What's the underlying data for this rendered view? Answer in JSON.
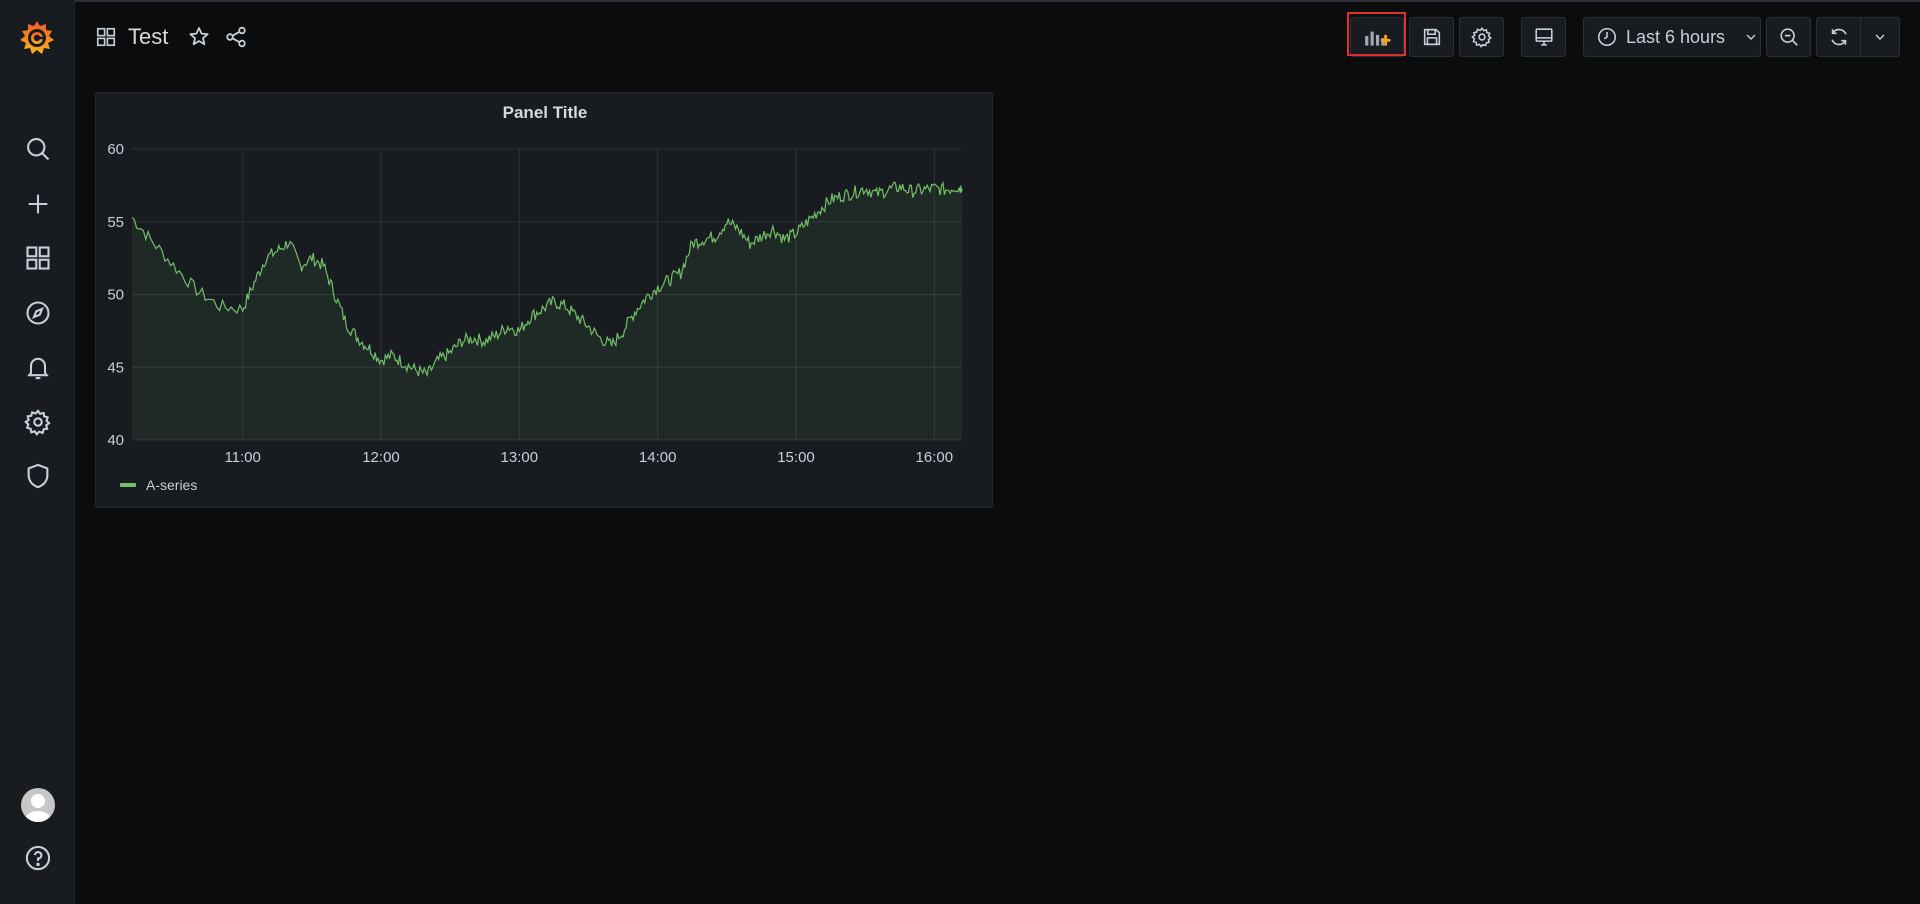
{
  "dashboard": {
    "title": "Test"
  },
  "toolbar": {
    "time_range_label": "Last 6 hours"
  },
  "sidebar": {
    "items": [
      {
        "name": "search-icon"
      },
      {
        "name": "plus-icon"
      },
      {
        "name": "dashboards-icon"
      },
      {
        "name": "explore-icon"
      },
      {
        "name": "alerting-bell-icon"
      },
      {
        "name": "configuration-gear-icon"
      },
      {
        "name": "server-admin-shield-icon"
      }
    ]
  },
  "colors": {
    "series": "#73bf69",
    "highlight": "#e02f2f",
    "add_panel_accent": "#f5a623"
  },
  "panel": {
    "title": "Panel Title",
    "legend": "A-series"
  },
  "chart_data": {
    "type": "line",
    "title": "Panel Title",
    "xlabel": "",
    "ylabel": "",
    "x_ticks": [
      "11:00",
      "12:00",
      "13:00",
      "14:00",
      "15:00",
      "16:00"
    ],
    "y_ticks": [
      40,
      45,
      50,
      55,
      60
    ],
    "ylim": [
      40,
      60
    ],
    "grid": true,
    "legend_placement": "bottom-left",
    "series": [
      {
        "name": "A-series",
        "color": "#73bf69",
        "x": [
          "10:12",
          "10:20",
          "10:30",
          "10:40",
          "10:50",
          "11:00",
          "11:05",
          "11:10",
          "11:15",
          "11:20",
          "11:25",
          "11:30",
          "11:35",
          "11:40",
          "11:45",
          "11:50",
          "11:55",
          "12:00",
          "12:05",
          "12:10",
          "12:15",
          "12:20",
          "12:25",
          "12:30",
          "12:35",
          "12:40",
          "12:45",
          "12:50",
          "12:55",
          "13:00",
          "13:05",
          "13:10",
          "13:15",
          "13:20",
          "13:25",
          "13:30",
          "13:35",
          "13:40",
          "13:45",
          "13:50",
          "13:55",
          "14:00",
          "14:05",
          "14:10",
          "14:15",
          "14:20",
          "14:25",
          "14:30",
          "14:35",
          "14:40",
          "14:45",
          "14:50",
          "14:55",
          "15:00",
          "15:05",
          "15:10",
          "15:15",
          "15:20",
          "15:25",
          "15:30",
          "15:35",
          "15:40",
          "15:45",
          "15:50",
          "15:55",
          "16:00",
          "16:05",
          "16:10",
          "16:12"
        ],
        "values": [
          55.3,
          53.8,
          52.0,
          50.3,
          49.2,
          49.0,
          50.8,
          52.5,
          53.0,
          53.6,
          52.0,
          52.5,
          52.0,
          50.0,
          48.0,
          47.0,
          46.3,
          45.5,
          45.8,
          45.3,
          44.8,
          44.5,
          45.5,
          46.0,
          46.8,
          47.0,
          46.8,
          47.2,
          47.8,
          47.5,
          48.5,
          49.0,
          49.5,
          49.2,
          48.5,
          47.8,
          47.0,
          46.5,
          47.5,
          48.8,
          49.8,
          50.5,
          51.0,
          51.5,
          53.5,
          53.8,
          54.0,
          55.0,
          54.5,
          53.5,
          54.0,
          54.5,
          53.8,
          54.2,
          55.0,
          55.8,
          56.5,
          56.8,
          57.0,
          57.3,
          56.9,
          57.2,
          57.4,
          57.1,
          57.2,
          57.3,
          57.2,
          57.4,
          57.3
        ]
      }
    ]
  }
}
